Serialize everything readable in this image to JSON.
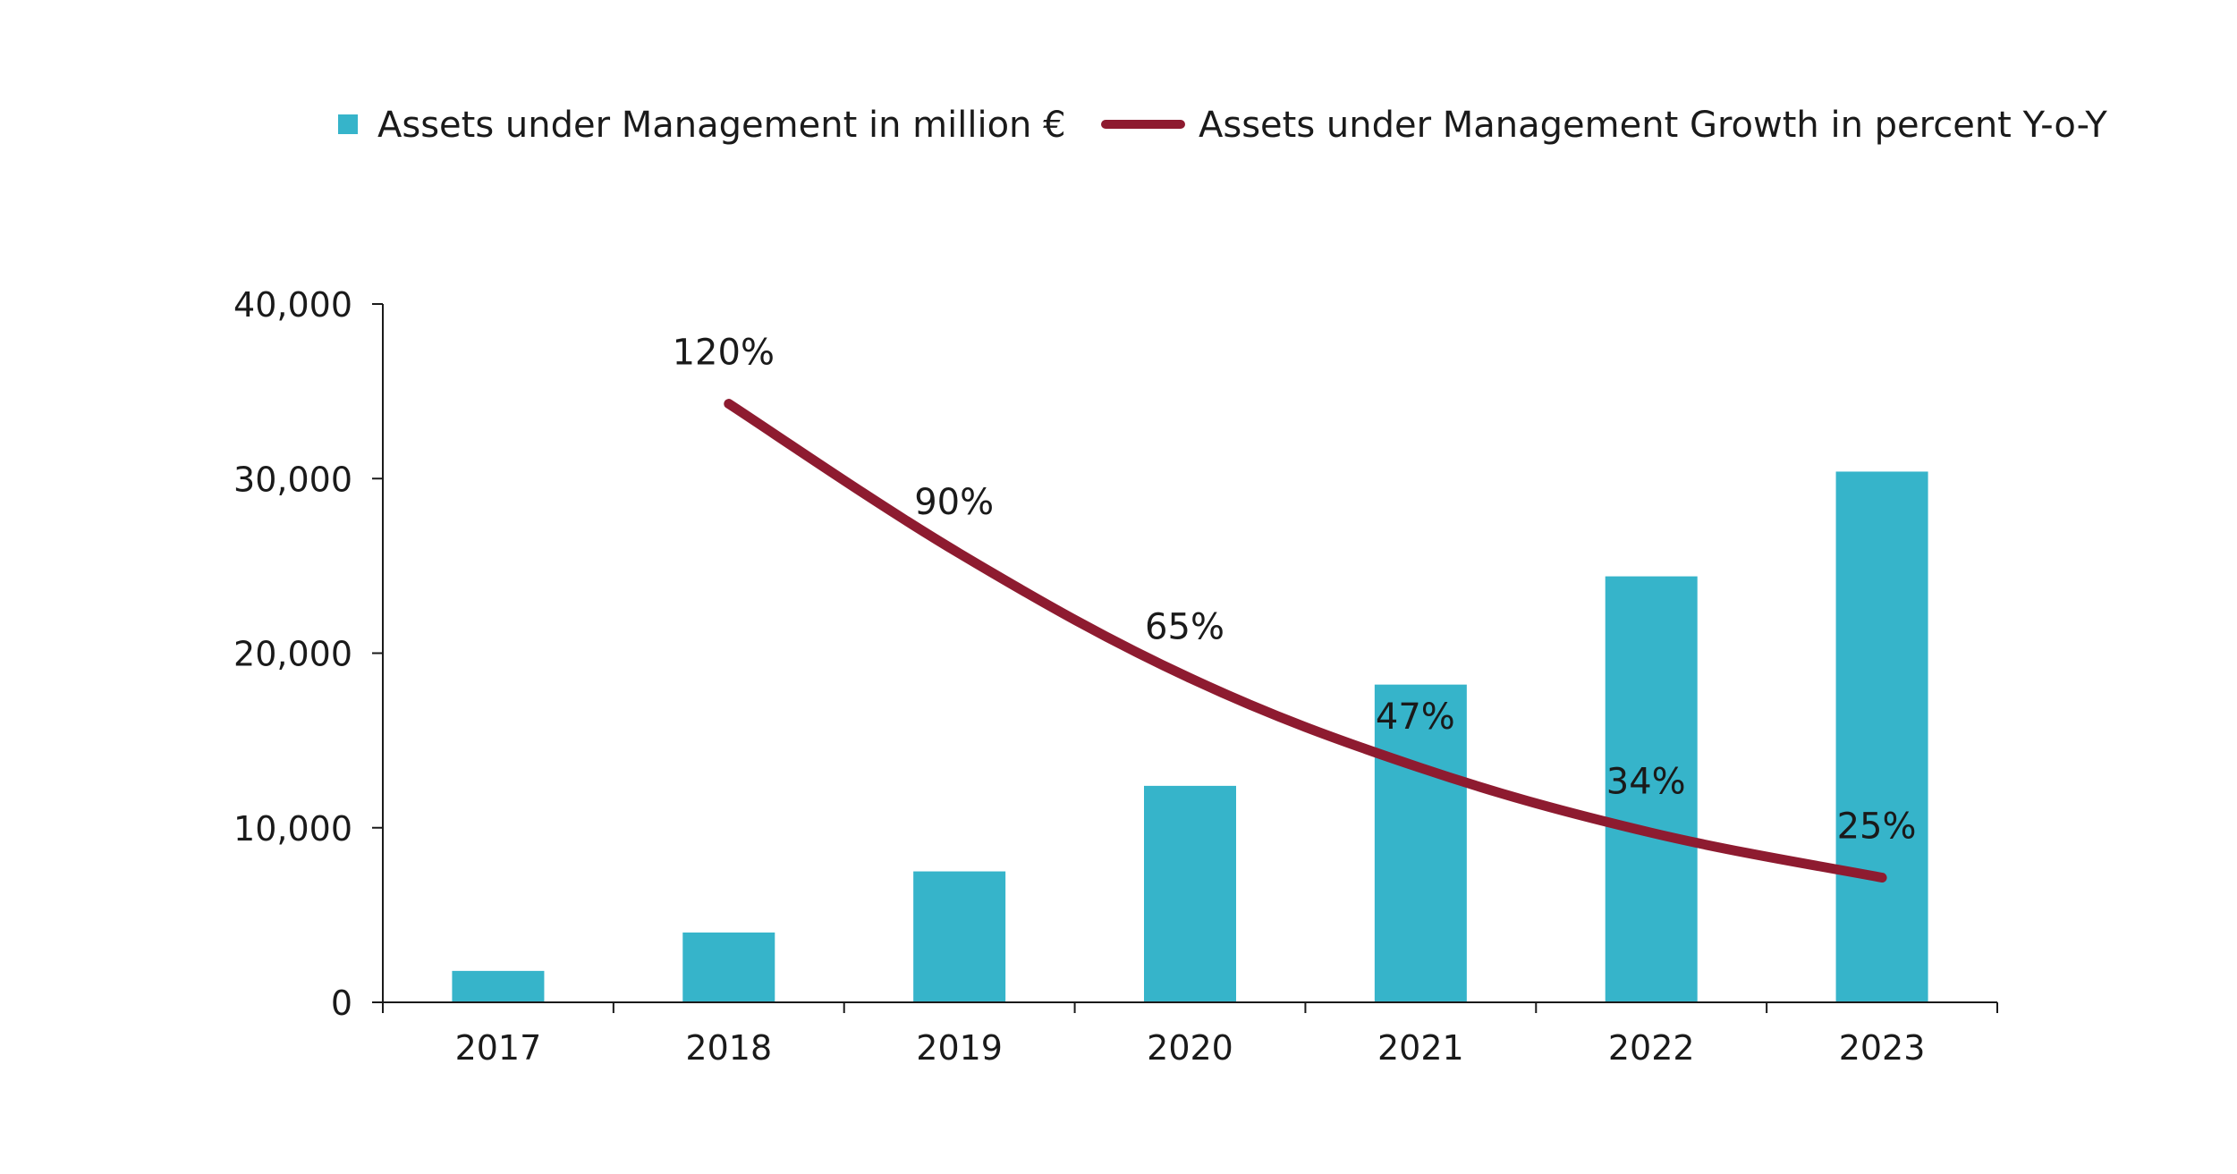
{
  "chart_data": {
    "type": "bar",
    "categories": [
      "2017",
      "2018",
      "2019",
      "2020",
      "2021",
      "2022",
      "2023"
    ],
    "series": [
      {
        "name": "Assets under Management in million €",
        "type": "bar",
        "axis": "left",
        "color": "#36B4CA",
        "values": [
          1800,
          4000,
          7500,
          12400,
          18200,
          24400,
          30400
        ]
      },
      {
        "name": "Assets under Management Growth in percent Y-o-Y",
        "type": "line",
        "axis": "right-hidden",
        "color": "#8E1B30",
        "values": [
          null,
          120,
          90,
          65,
          47,
          34,
          25
        ],
        "labels": [
          null,
          "120%",
          "90%",
          "65%",
          "47%",
          "34%",
          "25%"
        ]
      }
    ],
    "ylim": [
      0,
      40000
    ],
    "yticks": [
      0,
      10000,
      20000,
      30000,
      40000
    ],
    "ytick_labels": [
      "0",
      "10,000",
      "20,000",
      "30,000",
      "40,000"
    ],
    "secondary_ylim": [
      0,
      140
    ],
    "legend_position": "top",
    "grid": false
  }
}
